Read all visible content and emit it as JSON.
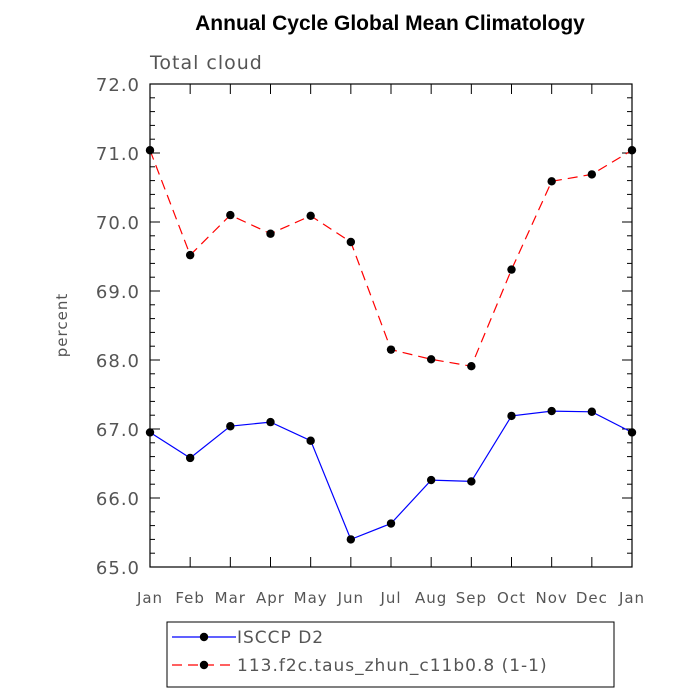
{
  "chart_data": {
    "type": "line",
    "title": "Annual Cycle Global Mean Climatology",
    "subtitle": "Total cloud",
    "xlabel": "",
    "ylabel": "percent",
    "categories": [
      "Jan",
      "Feb",
      "Mar",
      "Apr",
      "May",
      "Jun",
      "Jul",
      "Aug",
      "Sep",
      "Oct",
      "Nov",
      "Dec",
      "Jan"
    ],
    "ylim": [
      65.0,
      72.0
    ],
    "yticks": [
      "65.0",
      "66.0",
      "67.0",
      "68.0",
      "69.0",
      "70.0",
      "71.0",
      "72.0"
    ],
    "grid": false,
    "legend_position": "bottom",
    "series": [
      {
        "name": "ISCCP D2",
        "color": "#0000ff",
        "dash": "solid",
        "marker": "filled-circle",
        "values": [
          66.95,
          66.58,
          67.04,
          67.1,
          66.83,
          65.4,
          65.63,
          66.26,
          66.24,
          67.19,
          67.26,
          67.25,
          66.95
        ]
      },
      {
        "name": "113.f2c.taus_zhun_c11b0.8 (1-1)",
        "color": "#ff0000",
        "dash": "dashed",
        "marker": "filled-circle",
        "values": [
          71.04,
          69.52,
          70.1,
          69.83,
          70.09,
          69.71,
          68.15,
          68.01,
          67.91,
          69.31,
          70.59,
          70.69,
          71.04
        ]
      }
    ]
  }
}
